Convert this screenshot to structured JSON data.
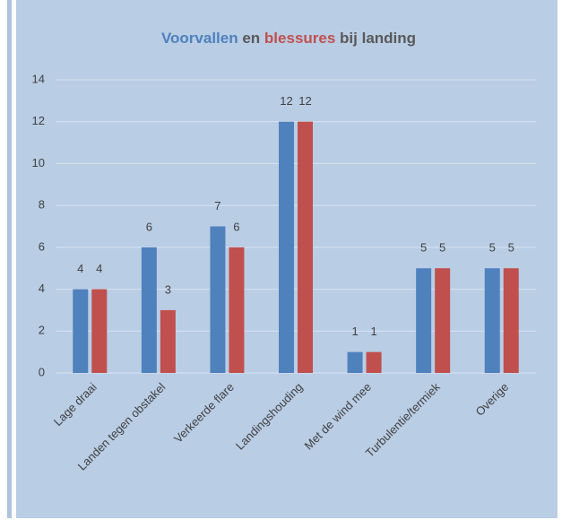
{
  "chart_data": {
    "type": "bar",
    "title": [
      {
        "text": "Voorvallen",
        "color": "#4f81bd"
      },
      {
        "text": "en",
        "color": "#595959"
      },
      {
        "text": "blessures",
        "color": "#c0504d"
      },
      {
        "text": "bij landing",
        "color": "#595959"
      }
    ],
    "categories": [
      "Lage draai",
      "Landen tegen obstakel",
      "Verkeerde flare",
      "Landingshouding",
      "Met de wind mee",
      "Turbulentie/termiek",
      "Overige"
    ],
    "series": [
      {
        "color": "#4f81bd",
        "values": [
          4,
          6,
          7,
          12,
          1,
          5,
          5
        ]
      },
      {
        "color": "#c0504d",
        "values": [
          4,
          3,
          6,
          12,
          1,
          5,
          5
        ]
      }
    ],
    "ylim": [
      0,
      14
    ],
    "yticks": [
      0,
      2,
      4,
      6,
      8,
      10,
      12,
      14
    ],
    "grid": true
  }
}
